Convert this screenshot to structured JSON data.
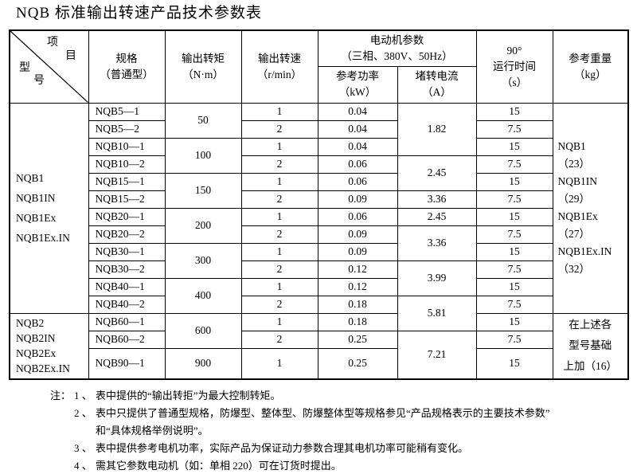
{
  "title": "NQB 标准输出转速产品技术参数表",
  "table": {
    "header": {
      "corner": {
        "item": [
          "项",
          "目"
        ],
        "model": [
          "型",
          "号"
        ]
      },
      "spec": [
        "规格",
        "（普通型）"
      ],
      "torque": [
        "输出转矩",
        "（N·m）"
      ],
      "speed": [
        "输出转速",
        "（r/min）"
      ],
      "motor": [
        "电动机参数",
        "（三相、380V、50Hz）"
      ],
      "power": [
        "参考功率",
        "（kW）"
      ],
      "current": [
        "堵转电流",
        "（A）"
      ],
      "time": [
        "90°",
        "运行时间",
        "（s）"
      ],
      "weight": [
        "参考重量",
        "（kg）"
      ]
    },
    "rows": [
      [
        {
          "n": "model-group-1",
          "c": "model m1",
          "rs": 12,
          "l": [
            "NQB1",
            "NQB1IN",
            "NQB1Ex",
            "NQB1Ex.IN"
          ]
        },
        {
          "n": "spec",
          "c": "spec",
          "t": "NQB5—1"
        },
        {
          "n": "torque",
          "rs": 2,
          "t": "50"
        },
        {
          "n": "speed",
          "t": "1"
        },
        {
          "n": "power",
          "t": "0.04"
        },
        {
          "n": "current",
          "rs": 3,
          "t": "1.82"
        },
        {
          "n": "time",
          "t": "15"
        },
        {
          "n": "weight-group-1",
          "c": "weight w1",
          "rs": 12,
          "l": [
            "NQB1",
            "（23）",
            "NQB1IN",
            "（29）",
            "NQB1Ex",
            "（27）",
            "NQB1Ex.IN",
            "（32）"
          ]
        }
      ],
      [
        {
          "n": "spec",
          "c": "spec",
          "t": "NQB5—2"
        },
        {
          "n": "speed",
          "t": "2"
        },
        {
          "n": "power",
          "t": "0.04"
        },
        {
          "n": "time",
          "t": "7.5"
        }
      ],
      [
        {
          "n": "spec",
          "c": "spec",
          "t": "NQB10—1"
        },
        {
          "n": "torque",
          "rs": 2,
          "t": "100"
        },
        {
          "n": "speed",
          "t": "1"
        },
        {
          "n": "power",
          "t": "0.04"
        },
        {
          "n": "time",
          "t": "15"
        }
      ],
      [
        {
          "n": "spec",
          "c": "spec",
          "t": "NQB10—2"
        },
        {
          "n": "speed",
          "t": "2"
        },
        {
          "n": "power",
          "t": "0.06"
        },
        {
          "n": "current",
          "rs": 2,
          "t": "2.45"
        },
        {
          "n": "time",
          "t": "7.5"
        }
      ],
      [
        {
          "n": "spec",
          "c": "spec",
          "t": "NQB15—1"
        },
        {
          "n": "torque",
          "rs": 2,
          "t": "150"
        },
        {
          "n": "speed",
          "t": "1"
        },
        {
          "n": "power",
          "t": "0.06"
        },
        {
          "n": "time",
          "t": "15"
        }
      ],
      [
        {
          "n": "spec",
          "c": "spec",
          "t": "NQB15—2"
        },
        {
          "n": "speed",
          "t": "2"
        },
        {
          "n": "power",
          "t": "0.09"
        },
        {
          "n": "current",
          "t": "3.36"
        },
        {
          "n": "time",
          "t": "7.5"
        }
      ],
      [
        {
          "n": "spec",
          "c": "spec",
          "t": "NQB20—1"
        },
        {
          "n": "torque",
          "rs": 2,
          "t": "200"
        },
        {
          "n": "speed",
          "t": "1"
        },
        {
          "n": "power",
          "t": "0.06"
        },
        {
          "n": "current",
          "t": "2.45"
        },
        {
          "n": "time",
          "t": "15"
        }
      ],
      [
        {
          "n": "spec",
          "c": "spec",
          "t": "NQB20—2"
        },
        {
          "n": "speed",
          "t": "2"
        },
        {
          "n": "power",
          "t": "0.09"
        },
        {
          "n": "current",
          "rs": 2,
          "t": "3.36"
        },
        {
          "n": "time",
          "t": "7.5"
        }
      ],
      [
        {
          "n": "spec",
          "c": "spec",
          "t": "NQB30—1"
        },
        {
          "n": "torque",
          "rs": 2,
          "t": "300"
        },
        {
          "n": "speed",
          "t": "1"
        },
        {
          "n": "power",
          "t": "0.09"
        },
        {
          "n": "time",
          "t": "15"
        }
      ],
      [
        {
          "n": "spec",
          "c": "spec",
          "t": "NQB30—2"
        },
        {
          "n": "speed",
          "t": "2"
        },
        {
          "n": "power",
          "t": "0.12"
        },
        {
          "n": "current",
          "rs": 2,
          "t": "3.99"
        },
        {
          "n": "time",
          "t": "7.5"
        }
      ],
      [
        {
          "n": "spec",
          "c": "spec",
          "t": "NQB40—1"
        },
        {
          "n": "torque",
          "rs": 2,
          "t": "400"
        },
        {
          "n": "speed",
          "t": "1"
        },
        {
          "n": "power",
          "t": "0.12"
        },
        {
          "n": "time",
          "t": "15"
        }
      ],
      [
        {
          "n": "spec",
          "c": "spec",
          "t": "NQB40—2"
        },
        {
          "n": "speed",
          "t": "2"
        },
        {
          "n": "power",
          "t": "0.18"
        },
        {
          "n": "current",
          "rs": 2,
          "t": "5.81"
        },
        {
          "n": "time",
          "t": "7.5"
        }
      ],
      [
        {
          "n": "model-group-2",
          "c": "model m2",
          "rs": 3,
          "l": [
            "NQB2",
            "NQB2IN",
            "NQB2Ex",
            "NQB2Ex.IN"
          ]
        },
        {
          "n": "spec",
          "c": "spec",
          "t": "NQB60—1"
        },
        {
          "n": "torque",
          "rs": 2,
          "t": "600"
        },
        {
          "n": "speed",
          "t": "1"
        },
        {
          "n": "power",
          "t": "0.18"
        },
        {
          "n": "time",
          "t": "15"
        },
        {
          "n": "weight-group-2",
          "c": "weight w2",
          "rs": 3,
          "l": [
            "在上述各",
            "型号基础",
            "上加（16）"
          ]
        }
      ],
      [
        {
          "n": "spec",
          "c": "spec",
          "t": "NQB60—2"
        },
        {
          "n": "speed",
          "t": "2"
        },
        {
          "n": "power",
          "t": "0.25"
        },
        {
          "n": "current",
          "rs": 2,
          "t": "7.21"
        },
        {
          "n": "time",
          "t": "7.5"
        }
      ],
      [
        {
          "n": "spec",
          "c": "spec",
          "t": "NQB90—1"
        },
        {
          "n": "torque",
          "t": "900"
        },
        {
          "n": "speed",
          "t": "1"
        },
        {
          "n": "power",
          "t": "0.25"
        },
        {
          "n": "time",
          "t": "15"
        }
      ]
    ]
  },
  "notes": {
    "label": "注：",
    "items": [
      {
        "num": "1 、",
        "lines": [
          "表中提供的“输出转拒”为最大控制转矩。"
        ]
      },
      {
        "num": "2 、",
        "lines": [
          "表中只提供了普通型规格，防爆型、整体型、防爆整体型等规格参见“产品规格表示的主要技术参数”",
          "和“具体规格举例说明”。"
        ]
      },
      {
        "num": "3 、",
        "lines": [
          "表中提供参考电机功率，实际产品为保证动力参数合理其电机功率可能稍有变化。"
        ]
      },
      {
        "num": "4 、",
        "lines": [
          "需其它参数电动机（如：单相 220）可在订货时提出。"
        ]
      }
    ]
  }
}
